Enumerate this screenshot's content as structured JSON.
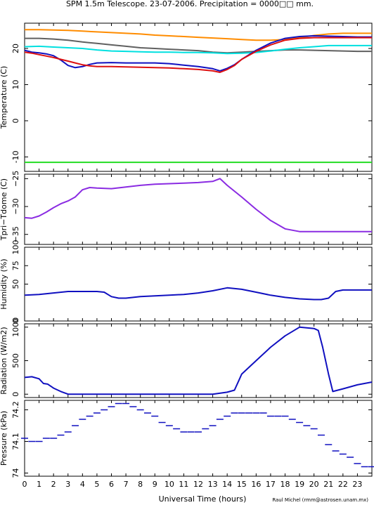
{
  "title": "SPM 1.5m Telescope. 23-07-2006. Precipitation = 0000□□ mm.",
  "xlabel": "Universal Time (hours)",
  "credit": "Raul Michel (rmm@astrosen.unam.mx)",
  "x_ticks": [
    "0",
    "1",
    "2",
    "3",
    "4",
    "5",
    "6",
    "7",
    "8",
    "9",
    "10",
    "11",
    "12",
    "13",
    "14",
    "15",
    "16",
    "17",
    "18",
    "19",
    "20",
    "21",
    "22",
    "23"
  ],
  "chart_data": [
    {
      "type": "line",
      "ylabel": "Temperature (C)",
      "xlim": [
        0,
        24
      ],
      "ylim": [
        -14,
        27
      ],
      "y_ticks": [
        {
          "v": 20,
          "label": "20"
        },
        {
          "v": 10,
          "label": "10"
        },
        {
          "v": 0,
          "label": "0"
        },
        {
          "v": -10,
          "label": "-10"
        }
      ],
      "series": [
        {
          "color": "#ff8c00",
          "x": [
            0,
            1,
            2,
            3,
            4,
            5,
            6,
            7,
            8,
            9,
            10,
            11,
            12,
            13,
            14,
            15,
            16,
            17,
            18,
            19,
            20,
            21,
            22,
            23,
            24
          ],
          "y": [
            25.2,
            25.2,
            25.1,
            25.0,
            24.8,
            24.6,
            24.4,
            24.2,
            24.0,
            23.7,
            23.5,
            23.3,
            23.1,
            22.9,
            22.7,
            22.5,
            22.3,
            22.3,
            22.5,
            23.0,
            23.6,
            24.0,
            24.2,
            24.2,
            24.2
          ]
        },
        {
          "color": "#606060",
          "x": [
            0,
            1,
            2,
            3,
            4,
            5,
            6,
            7,
            8,
            9,
            10,
            11,
            12,
            13,
            14,
            15,
            16,
            17,
            18,
            19,
            20,
            21,
            22,
            23,
            24
          ],
          "y": [
            22.8,
            22.8,
            22.6,
            22.3,
            21.8,
            21.4,
            21.0,
            20.6,
            20.2,
            20.0,
            19.8,
            19.6,
            19.4,
            19.0,
            18.8,
            19.0,
            19.2,
            19.4,
            19.6,
            19.6,
            19.5,
            19.4,
            19.3,
            19.2,
            19.2
          ]
        },
        {
          "color": "#00e0e0",
          "x": [
            0,
            1,
            2,
            3,
            4,
            5,
            6,
            7,
            8,
            9,
            10,
            11,
            12,
            13,
            14,
            15,
            16,
            17,
            18,
            19,
            20,
            21,
            22,
            23,
            24
          ],
          "y": [
            20.5,
            20.6,
            20.4,
            20.2,
            20.0,
            19.6,
            19.3,
            19.2,
            19.1,
            19.0,
            19.0,
            18.9,
            18.9,
            18.8,
            18.6,
            18.7,
            18.9,
            19.3,
            19.8,
            20.2,
            20.5,
            20.8,
            20.8,
            20.8,
            20.8
          ]
        },
        {
          "color": "#1010c0",
          "x": [
            0,
            0.5,
            1,
            1.5,
            2,
            2.5,
            3,
            3.5,
            4,
            4.5,
            5,
            6,
            7,
            8,
            9,
            10,
            11,
            12,
            13,
            13.5,
            14,
            14.5,
            15,
            16,
            17,
            18,
            19,
            20,
            21,
            22,
            23,
            24
          ],
          "y": [
            19.5,
            19.0,
            18.8,
            18.5,
            18.0,
            16.8,
            15.3,
            14.7,
            15.0,
            15.6,
            16.0,
            16.1,
            16.0,
            16.0,
            16.0,
            15.8,
            15.4,
            15.0,
            14.4,
            13.8,
            14.5,
            15.5,
            17.0,
            19.5,
            21.5,
            22.8,
            23.3,
            23.5,
            23.4,
            23.3,
            23.2,
            23.2
          ]
        },
        {
          "color": "#dd1010",
          "x": [
            0,
            0.5,
            1,
            1.5,
            2,
            2.5,
            3,
            3.5,
            4,
            4.5,
            5,
            6,
            7,
            8,
            9,
            10,
            11,
            12,
            13,
            13.5,
            14,
            14.5,
            15,
            16,
            17,
            18,
            19,
            20,
            21,
            22,
            23,
            24
          ],
          "y": [
            19.0,
            18.7,
            18.3,
            17.9,
            17.5,
            17.0,
            16.5,
            16.0,
            15.5,
            15.2,
            15.0,
            15.0,
            14.9,
            14.8,
            14.7,
            14.6,
            14.4,
            14.2,
            13.8,
            13.4,
            14.2,
            15.3,
            17.0,
            19.2,
            21.0,
            22.3,
            22.8,
            23.0,
            23.0,
            23.0,
            23.0,
            23.0
          ]
        },
        {
          "color": "#22dd22",
          "x": [
            0,
            24
          ],
          "y": [
            -11.5,
            -11.5
          ]
        }
      ]
    },
    {
      "type": "line",
      "ylabel": "Tpri−Tdome (C)",
      "xlim": [
        0,
        24
      ],
      "ylim": [
        -36.8,
        -24.2
      ],
      "y_ticks": [
        {
          "v": -25,
          "label": "−25"
        },
        {
          "v": -30,
          "label": "−30"
        },
        {
          "v": -35,
          "label": "−35"
        }
      ],
      "series": [
        {
          "color": "#8a2be2",
          "x": [
            0,
            0.5,
            1,
            1.5,
            2,
            2.5,
            3,
            3.5,
            4,
            4.5,
            5,
            6,
            7,
            8,
            9,
            10,
            11,
            12,
            13,
            13.5,
            14,
            15,
            16,
            17,
            18,
            19,
            20,
            21,
            22,
            23,
            24
          ],
          "y": [
            -32.0,
            -32.1,
            -31.7,
            -31.0,
            -30.2,
            -29.5,
            -29.0,
            -28.3,
            -27.0,
            -26.6,
            -26.7,
            -26.8,
            -26.5,
            -26.2,
            -26.0,
            -25.9,
            -25.8,
            -25.7,
            -25.5,
            -25.0,
            -26.2,
            -28.3,
            -30.5,
            -32.5,
            -34.0,
            -34.5,
            -34.5,
            -34.5,
            -34.5,
            -34.5,
            -34.5
          ]
        }
      ]
    },
    {
      "type": "line",
      "ylabel": "Humidity (%)",
      "xlim": [
        0,
        24
      ],
      "ylim": [
        0,
        100
      ],
      "y_ticks": [
        {
          "v": 0,
          "label": "0"
        },
        {
          "v": 50,
          "label": "50"
        },
        {
          "v": 75,
          "label": "75"
        },
        {
          "v": 100,
          "label": "100"
        }
      ],
      "series": [
        {
          "color": "#1010c0",
          "x": [
            0,
            1,
            2,
            3,
            4,
            5,
            5.5,
            6,
            6.5,
            7,
            8,
            9,
            10,
            11,
            12,
            13,
            14,
            15,
            16,
            17,
            18,
            19,
            20,
            20.5,
            21,
            21.5,
            22,
            23,
            24
          ],
          "y": [
            35,
            36,
            38,
            40,
            40,
            40,
            39,
            33,
            31,
            31,
            33,
            34,
            35,
            36,
            38,
            41,
            45,
            43,
            39,
            35,
            32,
            30,
            29,
            29,
            31,
            40,
            42,
            42,
            42
          ]
        }
      ]
    },
    {
      "type": "line",
      "ylabel": "Radiation (W/m2)",
      "xlim": [
        0,
        24
      ],
      "ylim": [
        -50,
        1050
      ],
      "y_ticks": [
        {
          "v": 0,
          "label": "0"
        },
        {
          "v": 500,
          "label": "500"
        },
        {
          "v": 1000,
          "label": "1000"
        }
      ],
      "series": [
        {
          "color": "#1010c0",
          "x": [
            0,
            0.5,
            1,
            1.3,
            1.6,
            2,
            2.5,
            3,
            4,
            5,
            6,
            7,
            8,
            9,
            10,
            11,
            12,
            13,
            14,
            14.5,
            14.8,
            15,
            16,
            17,
            18,
            19,
            20,
            20.3,
            20.6,
            21,
            21.3,
            22,
            23,
            24
          ],
          "y": [
            250,
            260,
            230,
            160,
            150,
            90,
            40,
            0,
            0,
            0,
            0,
            0,
            0,
            0,
            0,
            0,
            0,
            0,
            30,
            60,
            200,
            300,
            500,
            700,
            870,
            1000,
            980,
            950,
            700,
            300,
            40,
            80,
            140,
            180
          ]
        }
      ]
    },
    {
      "type": "scatter",
      "ylabel": "Pressure (kPa)",
      "xlim": [
        0,
        24
      ],
      "ylim": [
        73.99,
        74.23
      ],
      "y_ticks": [
        {
          "v": 74.2,
          "label": "74.2"
        },
        {
          "v": 74.1,
          "label": "74.1"
        },
        {
          "v": 74.0,
          "label": "74"
        }
      ],
      "series": [
        {
          "color": "#1010c0",
          "x": [
            0,
            0.5,
            1,
            1.5,
            2,
            2.5,
            3,
            3.5,
            4,
            4.5,
            5,
            5.5,
            6,
            6.5,
            7,
            7.5,
            8,
            8.5,
            9,
            9.5,
            10,
            10.5,
            11,
            11.5,
            12,
            12.5,
            13,
            13.5,
            14,
            14.5,
            15,
            15.5,
            16,
            16.5,
            17,
            17.5,
            18,
            18.5,
            19,
            19.5,
            20,
            20.5,
            21,
            21.5,
            22,
            22.5,
            23,
            23.5,
            24
          ],
          "y": [
            74.11,
            74.1,
            74.1,
            74.11,
            74.11,
            74.12,
            74.13,
            74.15,
            74.17,
            74.18,
            74.19,
            74.2,
            74.21,
            74.22,
            74.22,
            74.21,
            74.2,
            74.19,
            74.18,
            74.16,
            74.15,
            74.14,
            74.13,
            74.13,
            74.13,
            74.14,
            74.15,
            74.17,
            74.18,
            74.19,
            74.19,
            74.19,
            74.19,
            74.19,
            74.18,
            74.18,
            74.18,
            74.17,
            74.16,
            74.15,
            74.14,
            74.12,
            74.09,
            74.07,
            74.06,
            74.05,
            74.03,
            74.02,
            74.02
          ]
        }
      ]
    }
  ]
}
